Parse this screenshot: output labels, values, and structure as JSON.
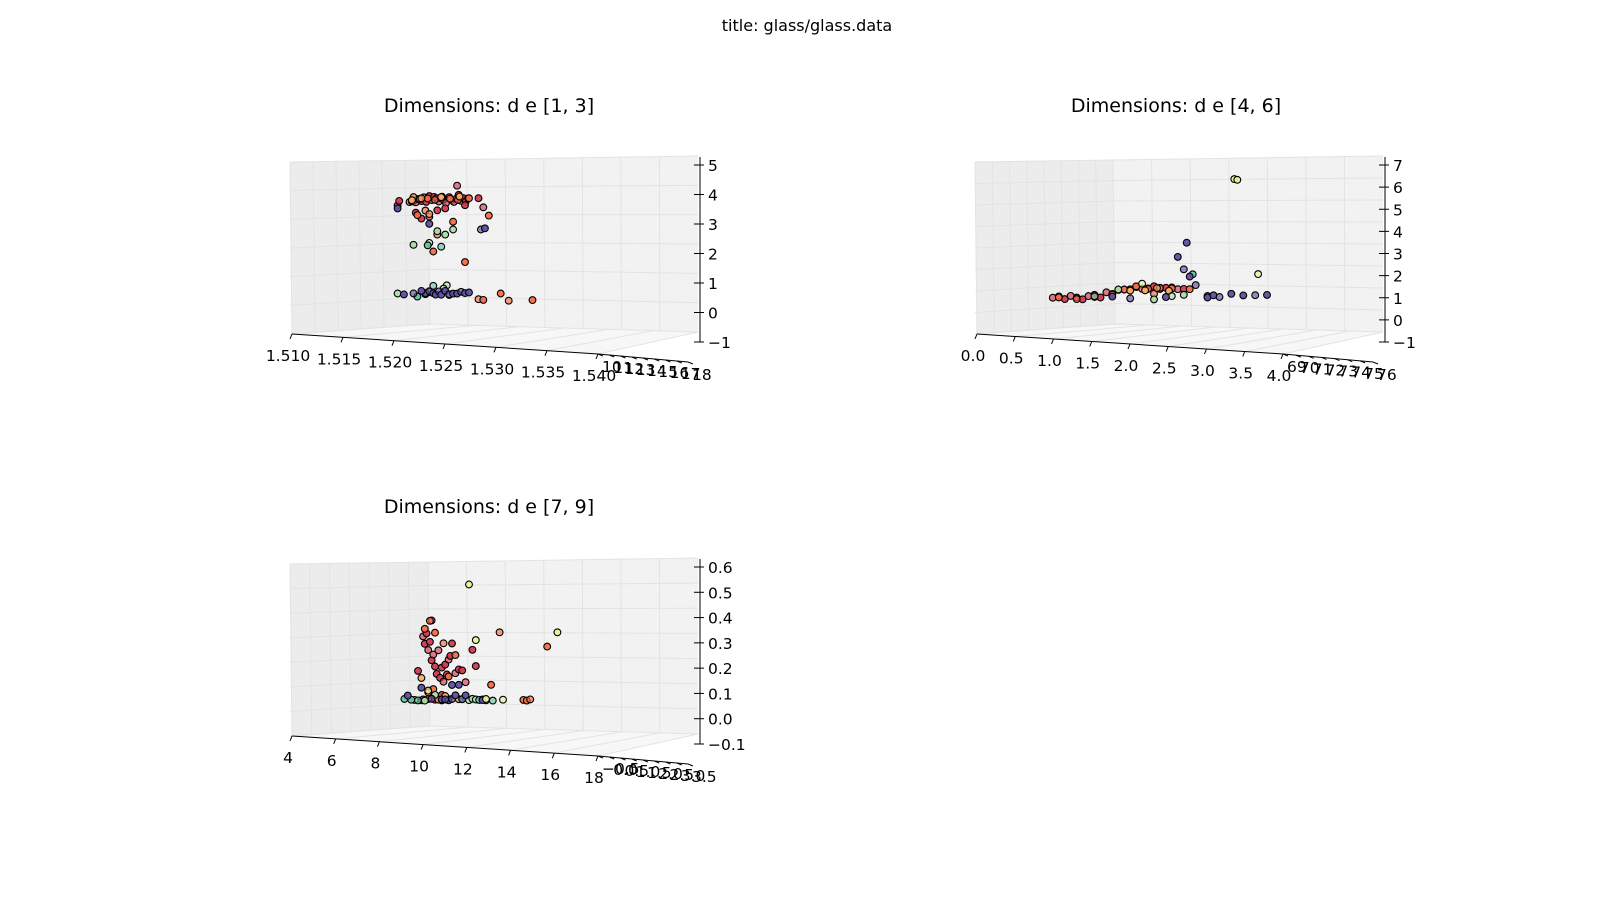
{
  "figure_title": "title: glass/glass.data",
  "chart_data": [
    {
      "type": "scatter",
      "title": "Dimensions: d e [1, 3]",
      "xticks": [
        "1.510",
        "1.515",
        "1.520",
        "1.525",
        "1.530",
        "1.535",
        "1.540"
      ],
      "xlim": [
        1.51,
        1.54
      ],
      "yticks": [
        "10",
        "11",
        "12",
        "13",
        "14",
        "15",
        "16",
        "17",
        "18"
      ],
      "zticks": [
        "−1",
        "0",
        "1",
        "2",
        "3",
        "4",
        "5"
      ],
      "zlim": [
        -1,
        5
      ],
      "points": [
        [
          1.5175,
          3.5,
          1
        ],
        [
          1.5178,
          3.55,
          1
        ],
        [
          1.518,
          3.6,
          1
        ],
        [
          1.5183,
          3.5,
          1
        ],
        [
          1.5186,
          3.65,
          1
        ],
        [
          1.519,
          3.6,
          1
        ],
        [
          1.5193,
          3.7,
          1
        ],
        [
          1.5196,
          3.55,
          1
        ],
        [
          1.52,
          3.8,
          1
        ],
        [
          1.5203,
          3.6,
          1
        ],
        [
          1.5206,
          3.75,
          1
        ],
        [
          1.5209,
          3.65,
          1
        ],
        [
          1.5212,
          3.55,
          1
        ],
        [
          1.5215,
          3.7,
          1
        ],
        [
          1.5218,
          3.6,
          1
        ],
        [
          1.5221,
          3.5,
          1
        ],
        [
          1.5225,
          3.75,
          1
        ],
        [
          1.5228,
          3.6,
          1
        ],
        [
          1.5231,
          3.55,
          1
        ],
        [
          1.5234,
          3.7,
          1
        ],
        [
          1.5237,
          3.8,
          1
        ],
        [
          1.524,
          3.6,
          1
        ],
        [
          1.5243,
          3.65,
          1
        ],
        [
          1.5246,
          3.55,
          1
        ],
        [
          1.5249,
          3.7,
          1
        ],
        [
          1.5183,
          3.1,
          1
        ],
        [
          1.519,
          2.9,
          1
        ],
        [
          1.52,
          3.0,
          1
        ],
        [
          1.521,
          3.2,
          1
        ],
        [
          1.522,
          3.3,
          1
        ],
        [
          1.5235,
          4.2,
          1
        ],
        [
          1.5245,
          3.4,
          1
        ],
        [
          1.5262,
          3.7,
          1
        ],
        [
          1.5268,
          3.3,
          1
        ],
        [
          1.516,
          3.4,
          1
        ],
        [
          1.5162,
          3.6,
          1
        ],
        [
          1.518,
          3.7,
          2
        ],
        [
          1.5188,
          3.65,
          2
        ],
        [
          1.5198,
          3.7,
          2
        ],
        [
          1.5207,
          3.6,
          2
        ],
        [
          1.5216,
          3.75,
          2
        ],
        [
          1.5226,
          3.7,
          2
        ],
        [
          1.5236,
          3.6,
          2
        ],
        [
          1.525,
          3.7,
          2
        ],
        [
          1.5185,
          3.0,
          2
        ],
        [
          1.5195,
          3.2,
          2
        ],
        [
          1.523,
          2.8,
          2
        ],
        [
          1.5245,
          1.2,
          2
        ],
        [
          1.5262,
          -0.2,
          2
        ],
        [
          1.5268,
          -0.2,
          2
        ],
        [
          1.529,
          0.0,
          2
        ],
        [
          1.53,
          -0.25,
          2
        ],
        [
          1.533,
          -0.2,
          2
        ],
        [
          1.5275,
          3.0,
          2
        ],
        [
          1.521,
          2.3,
          2
        ],
        [
          1.5205,
          1.6,
          2
        ],
        [
          1.5178,
          3.6,
          3
        ],
        [
          1.519,
          3.7,
          3
        ],
        [
          1.5215,
          3.7,
          3
        ],
        [
          1.5238,
          3.75,
          3
        ],
        [
          1.52,
          3.1,
          3
        ],
        [
          1.516,
          0.0,
          5
        ],
        [
          1.518,
          1.9,
          5
        ],
        [
          1.52,
          2.0,
          5
        ],
        [
          1.521,
          2.4,
          5
        ],
        [
          1.522,
          2.3,
          5
        ],
        [
          1.5222,
          0.3,
          5
        ],
        [
          1.5218,
          0.2,
          5
        ],
        [
          1.523,
          2.5,
          5
        ],
        [
          1.52,
          0.05,
          5
        ],
        [
          1.5185,
          -0.1,
          6
        ],
        [
          1.5198,
          1.9,
          6
        ],
        [
          1.5215,
          1.8,
          6
        ],
        [
          1.5195,
          0.0,
          6
        ],
        [
          1.5225,
          0.0,
          6
        ],
        [
          1.5205,
          0.3,
          6
        ],
        [
          1.5168,
          0.0,
          7
        ],
        [
          1.5195,
          0.0,
          7
        ],
        [
          1.52,
          0.1,
          7
        ],
        [
          1.5205,
          0.05,
          7
        ],
        [
          1.5208,
          -0.05,
          7
        ],
        [
          1.5212,
          0.1,
          7
        ],
        [
          1.5215,
          0.0,
          7
        ],
        [
          1.522,
          0.1,
          7
        ],
        [
          1.5225,
          0.0,
          7
        ],
        [
          1.523,
          0.05,
          7
        ],
        [
          1.5235,
          0.0,
          7
        ],
        [
          1.524,
          0.1,
          7
        ],
        [
          1.5245,
          0.0,
          7
        ],
        [
          1.525,
          0.05,
          7
        ],
        [
          1.5265,
          2.5,
          7
        ],
        [
          1.527,
          2.5,
          7
        ],
        [
          1.52,
          2.7,
          7
        ],
        [
          1.518,
          0.05,
          7
        ],
        [
          1.519,
          0.1,
          7
        ],
        [
          1.516,
          3.3,
          7
        ]
      ]
    },
    {
      "type": "scatter",
      "title": "Dimensions: d e [4, 6]",
      "xticks": [
        "0.0",
        "0.5",
        "1.0",
        "1.5",
        "2.0",
        "2.5",
        "3.0",
        "3.5",
        "4.0"
      ],
      "xlim": [
        0.0,
        4.0
      ],
      "yticks": [
        "69",
        "70",
        "71",
        "72",
        "73",
        "74",
        "75",
        "76"
      ],
      "zticks": [
        "−1",
        "0",
        "1",
        "2",
        "3",
        "4",
        "5",
        "6",
        "7"
      ],
      "zlim": [
        -1,
        7
      ],
      "points": [
        [
          0.3,
          0.1,
          1
        ],
        [
          0.4,
          0.2,
          1
        ],
        [
          0.5,
          0.1,
          1
        ],
        [
          0.6,
          0.2,
          1
        ],
        [
          0.7,
          0.15,
          1
        ],
        [
          0.8,
          0.1,
          1
        ],
        [
          0.9,
          0.2,
          1
        ],
        [
          1.0,
          0.3,
          1
        ],
        [
          1.1,
          0.2,
          1
        ],
        [
          1.2,
          0.4,
          1
        ],
        [
          1.3,
          0.35,
          1
        ],
        [
          1.4,
          0.5,
          1
        ],
        [
          1.5,
          0.55,
          1
        ],
        [
          1.6,
          0.6,
          1
        ],
        [
          1.7,
          0.65,
          1
        ],
        [
          1.8,
          0.6,
          1
        ],
        [
          1.9,
          0.65,
          1
        ],
        [
          2.0,
          0.7,
          1
        ],
        [
          2.1,
          0.6,
          1
        ],
        [
          2.2,
          0.7,
          1
        ],
        [
          2.3,
          0.65,
          1
        ],
        [
          2.4,
          0.6,
          1
        ],
        [
          2.5,
          0.55,
          1
        ],
        [
          0.4,
          0.15,
          2
        ],
        [
          0.7,
          0.1,
          2
        ],
        [
          1.0,
          0.15,
          2
        ],
        [
          1.3,
          0.3,
          2
        ],
        [
          1.5,
          0.6,
          2
        ],
        [
          1.7,
          0.7,
          2
        ],
        [
          1.9,
          0.6,
          2
        ],
        [
          2.1,
          0.7,
          2
        ],
        [
          2.3,
          0.6,
          2
        ],
        [
          2.6,
          0.6,
          2
        ],
        [
          2.0,
          0.3,
          2
        ],
        [
          1.6,
          0.5,
          3
        ],
        [
          1.85,
          0.55,
          3
        ],
        [
          2.05,
          0.6,
          3
        ],
        [
          2.25,
          0.5,
          3
        ],
        [
          1.4,
          0.6,
          5
        ],
        [
          2.3,
          0.2,
          5
        ],
        [
          2.5,
          0.3,
          5
        ],
        [
          2.0,
          0.1,
          5
        ],
        [
          1.0,
          0.2,
          6
        ],
        [
          2.9,
          0.25,
          6
        ],
        [
          2.65,
          1.3,
          6
        ],
        [
          1.6,
          0.1,
          7
        ],
        [
          2.2,
          0.2,
          7
        ],
        [
          2.4,
          2.2,
          7
        ],
        [
          2.5,
          1.6,
          7
        ],
        [
          2.55,
          3.0,
          7
        ],
        [
          2.6,
          1.2,
          7
        ],
        [
          2.7,
          0.8,
          7
        ],
        [
          2.9,
          0.2,
          7
        ],
        [
          3.0,
          0.25,
          7
        ],
        [
          3.1,
          0.2,
          7
        ],
        [
          3.3,
          0.3,
          7
        ],
        [
          3.5,
          0.25,
          7
        ],
        [
          3.7,
          0.3,
          7
        ],
        [
          3.9,
          0.25,
          7
        ],
        [
          1.3,
          0.2,
          7
        ],
        [
          1.8,
          0.9,
          8
        ],
        [
          3.35,
          6.2,
          8
        ],
        [
          3.4,
          6.2,
          8
        ],
        [
          3.75,
          1.4,
          8
        ]
      ]
    },
    {
      "type": "scatter",
      "title": "Dimensions: d e [7, 9]",
      "xticks": [
        "4",
        "6",
        "8",
        "10",
        "12",
        "14",
        "16",
        "18"
      ],
      "xlim": [
        4,
        18
      ],
      "yticks": [
        "−0.5",
        "0.0",
        "0.5",
        "1.0",
        "1.5",
        "2.0",
        "2.5",
        "3.0",
        "3.5"
      ],
      "zticks": [
        "−0.1",
        "0.0",
        "0.1",
        "0.2",
        "0.3",
        "0.4",
        "0.5",
        "0.6"
      ],
      "zlim": [
        -0.1,
        0.6
      ],
      "points": [
        [
          8.3,
          0.28,
          1
        ],
        [
          8.4,
          0.25,
          1
        ],
        [
          8.5,
          0.3,
          1
        ],
        [
          8.6,
          0.22,
          1
        ],
        [
          8.7,
          0.26,
          1
        ],
        [
          8.8,
          0.18,
          1
        ],
        [
          8.9,
          0.2,
          1
        ],
        [
          9.0,
          0.15,
          1
        ],
        [
          9.1,
          0.12,
          1
        ],
        [
          9.2,
          0.22,
          1
        ],
        [
          9.3,
          0.1,
          1
        ],
        [
          9.4,
          0.14,
          1
        ],
        [
          9.5,
          0.08,
          1
        ],
        [
          9.6,
          0.16,
          1
        ],
        [
          9.7,
          0.11,
          1
        ],
        [
          9.8,
          0.18,
          1
        ],
        [
          9.9,
          0.2,
          1
        ],
        [
          10.0,
          0.25,
          1
        ],
        [
          10.2,
          0.12,
          1
        ],
        [
          10.4,
          0.14,
          1
        ],
        [
          10.6,
          0.13,
          1
        ],
        [
          10.8,
          0.08,
          1
        ],
        [
          11.2,
          0.22,
          1
        ],
        [
          11.4,
          0.15,
          1
        ],
        [
          8.2,
          0.0,
          1
        ],
        [
          8.6,
          0.0,
          1
        ],
        [
          9.0,
          0.0,
          1
        ],
        [
          9.4,
          0.0,
          1
        ],
        [
          9.8,
          0.0,
          1
        ],
        [
          8.0,
          0.13,
          1
        ],
        [
          8.8,
          0.36,
          1
        ],
        [
          9.4,
          0.02,
          1
        ],
        [
          8.4,
          0.32,
          2
        ],
        [
          8.7,
          0.35,
          2
        ],
        [
          9.0,
          0.3,
          2
        ],
        [
          8.9,
          0.05,
          2
        ],
        [
          9.5,
          0.25,
          2
        ],
        [
          10.2,
          0.2,
          2
        ],
        [
          12.3,
          0.07,
          2
        ],
        [
          12.8,
          0.3,
          2
        ],
        [
          14.2,
          0.0,
          2
        ],
        [
          14.4,
          0.0,
          2
        ],
        [
          14.6,
          0.0,
          2
        ],
        [
          15.6,
          0.24,
          2
        ],
        [
          9.8,
          0.1,
          2
        ],
        [
          8.3,
          0.0,
          2
        ],
        [
          8.2,
          0.1,
          3
        ],
        [
          8.6,
          0.03,
          3
        ],
        [
          9.2,
          0.0,
          3
        ],
        [
          9.6,
          0.02,
          3
        ],
        [
          10.4,
          0.0,
          3
        ],
        [
          7.8,
          0.0,
          5
        ],
        [
          8.4,
          0.0,
          5
        ],
        [
          9.0,
          0.02,
          5
        ],
        [
          11.0,
          0.0,
          5
        ],
        [
          11.2,
          0.0,
          5
        ],
        [
          11.4,
          0.0,
          5
        ],
        [
          12.0,
          0.0,
          5
        ],
        [
          7.2,
          0.0,
          6
        ],
        [
          7.6,
          0.0,
          6
        ],
        [
          8.0,
          0.0,
          6
        ],
        [
          10.6,
          0.0,
          6
        ],
        [
          11.6,
          0.0,
          6
        ],
        [
          12.4,
          0.0,
          6
        ],
        [
          11.8,
          0.0,
          6
        ],
        [
          7.4,
          0.02,
          7
        ],
        [
          8.8,
          0.0,
          7
        ],
        [
          9.4,
          0.0,
          7
        ],
        [
          9.8,
          0.0,
          7
        ],
        [
          10.0,
          0.0,
          7
        ],
        [
          10.2,
          0.02,
          7
        ],
        [
          10.4,
          0.07,
          7
        ],
        [
          10.6,
          0.0,
          7
        ],
        [
          10.8,
          0.02,
          7
        ],
        [
          10.0,
          0.07,
          7
        ],
        [
          9.6,
          0.0,
          7
        ],
        [
          11.8,
          0.0,
          7
        ],
        [
          8.2,
          0.05,
          7
        ],
        [
          8.6,
          0.04,
          8
        ],
        [
          11.4,
          0.27,
          8
        ],
        [
          12.0,
          0.0,
          8
        ],
        [
          13.0,
          0.0,
          8
        ],
        [
          11.0,
          0.52,
          8
        ],
        [
          16.2,
          0.3,
          8
        ]
      ]
    }
  ],
  "class_colors": {
    "1": "#d13a52",
    "2": "#f46d43",
    "3": "#fdae61",
    "5": "#abdda4",
    "6": "#66c2a5",
    "7": "#5e4fa2",
    "8": "#e6f598"
  }
}
